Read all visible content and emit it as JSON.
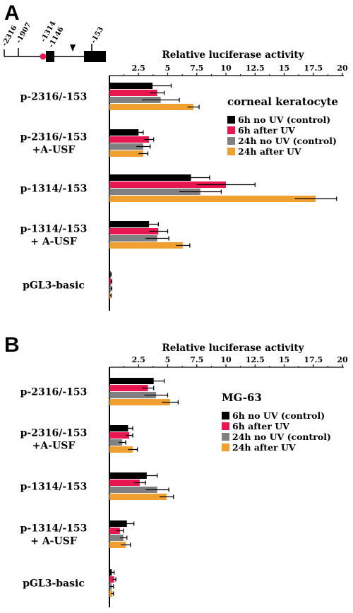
{
  "panel_a": {
    "letter": "A",
    "gene_map": {
      "labels": [
        "-2316",
        "-1907",
        "-1314",
        "-1146",
        "-153"
      ]
    }
  },
  "panel_b": {
    "letter": "B"
  },
  "colors": {
    "6h no UV (control)": "#000000",
    "6h after UV": "#e8174f",
    "24h no UV (control)": "#808080",
    "24h after UV": "#f0a030"
  },
  "chart_data": [
    {
      "type": "bar",
      "orientation": "horizontal",
      "title": "",
      "xlabel": "Relative luciferase activity",
      "ylabel": "",
      "xlim": [
        0,
        20
      ],
      "x_ticks": [
        2.5,
        5,
        7.5,
        10,
        12.5,
        15,
        17.5,
        20
      ],
      "x_tick_labels": [
        "2.5",
        "5",
        "7.5",
        "10",
        "12.5",
        "15",
        "17.5",
        "20"
      ],
      "legend_title": "corneal keratocyte",
      "legend_position": "right",
      "categories": [
        [
          "p-2316/-153"
        ],
        [
          "p-2316/-153",
          "+A-USF"
        ],
        [
          "p-1314/-153"
        ],
        [
          "p-1314/-153",
          "+ A-USF"
        ],
        [
          "pGL3-basic"
        ]
      ],
      "series": [
        {
          "name": "6h no UV (control)",
          "values": [
            3.7,
            2.5,
            7.0,
            3.4,
            0.1
          ],
          "errors": [
            1.6,
            0.4,
            1.6,
            0.8,
            0.05
          ]
        },
        {
          "name": "6h after UV",
          "values": [
            4.1,
            3.4,
            10.0,
            4.2,
            0.15
          ],
          "errors": [
            0.6,
            0.4,
            2.5,
            0.8,
            0.05
          ]
        },
        {
          "name": "24h no UV (control)",
          "values": [
            4.4,
            2.9,
            7.8,
            4.1,
            0.15
          ],
          "errors": [
            1.6,
            0.6,
            1.8,
            1.0,
            0.05
          ]
        },
        {
          "name": "24h after UV",
          "values": [
            7.2,
            2.9,
            17.7,
            6.3,
            0.1
          ],
          "errors": [
            0.5,
            0.4,
            1.8,
            0.6,
            0.05
          ]
        }
      ]
    },
    {
      "type": "bar",
      "orientation": "horizontal",
      "title": "",
      "xlabel": "Relative luciferase activity",
      "ylabel": "",
      "xlim": [
        0,
        20
      ],
      "x_ticks": [
        2.5,
        5,
        7.5,
        10,
        12.5,
        15,
        17.5,
        20
      ],
      "x_tick_labels": [
        "2.5",
        "5",
        "7.5",
        "10",
        "12.5",
        "15",
        "17.5",
        "20"
      ],
      "legend_title": "MG-63",
      "legend_position": "right",
      "categories": [
        [
          "p-2316/-153"
        ],
        [
          "p-2316/-153",
          "+A-USF"
        ],
        [
          "p-1314/-153"
        ],
        [
          "p-1314/-153",
          "+ A-USF"
        ],
        [
          "pGL3-basic"
        ]
      ],
      "series": [
        {
          "name": "6h no UV (control)",
          "values": [
            3.8,
            1.6,
            3.2,
            1.5,
            0.2
          ],
          "errors": [
            0.9,
            0.4,
            0.9,
            0.6,
            0.2
          ]
        },
        {
          "name": "6h after UV",
          "values": [
            3.3,
            1.7,
            2.6,
            0.9,
            0.4
          ],
          "errors": [
            0.5,
            0.3,
            0.5,
            0.3,
            0.15
          ]
        },
        {
          "name": "24h no UV (control)",
          "values": [
            4.0,
            1.1,
            4.1,
            1.2,
            0.2
          ],
          "errors": [
            1.0,
            0.3,
            1.0,
            0.3,
            0.15
          ]
        },
        {
          "name": "24h after UV",
          "values": [
            5.2,
            2.0,
            4.9,
            1.4,
            0.25
          ],
          "errors": [
            0.7,
            0.4,
            0.6,
            0.4,
            0.1
          ]
        }
      ]
    }
  ]
}
